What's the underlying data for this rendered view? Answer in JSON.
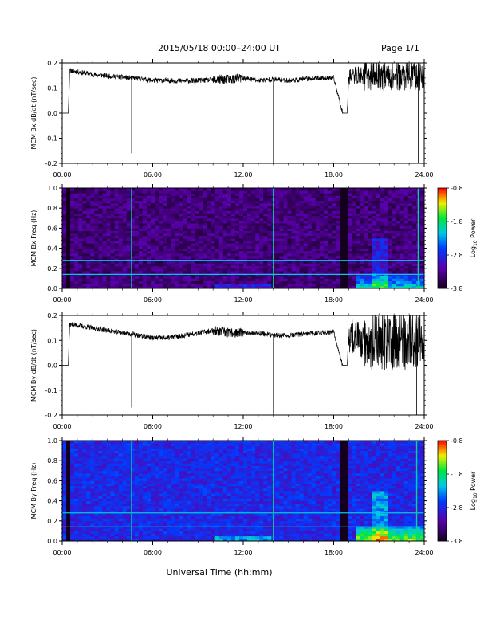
{
  "header": {
    "title": "2015/05/18  00:00–24:00 UT",
    "page": "Page 1/1"
  },
  "x_axis": {
    "ticks": [
      "00:00",
      "06:00",
      "12:00",
      "18:00",
      "24:00"
    ],
    "label": "Universal Time (hh:mm)"
  },
  "colorbar": {
    "ticks": [
      "-0.8",
      "-1.8",
      "-2.8",
      "-3.8"
    ],
    "label_main": "Log",
    "label_sub": "10",
    "label_tail": " Power",
    "range": [
      -3.8,
      -0.8
    ]
  },
  "chart_data": [
    {
      "type": "line",
      "ylabel": "MCM Bx dB/dt (nT/sec)",
      "xlim": [
        0,
        24
      ],
      "ylim": [
        -0.2,
        0.2
      ],
      "yticks": [
        "0.2",
        "0.1",
        "0.0",
        "-0.1",
        "-0.2"
      ],
      "xticks": [
        "00:00",
        "06:00",
        "12:00",
        "18:00",
        "24:00"
      ],
      "series": [
        {
          "x": [
            0.0,
            0.4,
            0.5,
            1.0,
            2.0,
            3.0,
            4.0,
            4.6,
            5.0,
            6.0,
            7.0,
            8.0,
            9.0,
            10.0,
            11.0,
            12.0,
            13.0,
            14.0,
            15.0,
            16.0,
            17.0,
            18.0,
            18.6,
            18.9,
            19.0,
            20.0,
            21.0,
            22.0,
            23.0,
            24.0
          ],
          "y": [
            0.0,
            0.0,
            0.17,
            0.165,
            0.155,
            0.148,
            0.143,
            0.14,
            0.138,
            0.13,
            0.13,
            0.128,
            0.13,
            0.132,
            0.135,
            0.14,
            0.13,
            0.135,
            0.13,
            0.135,
            0.14,
            0.14,
            0.0,
            0.0,
            0.15,
            0.15,
            0.15,
            0.15,
            0.15,
            0.15
          ]
        }
      ],
      "spikes": [
        {
          "x": 4.6,
          "y": -0.16
        },
        {
          "x": 14.0,
          "y": -0.2
        },
        {
          "x": 23.6,
          "y": -0.2
        }
      ]
    },
    {
      "type": "heatmap",
      "ylabel": "MCM Bx Freq (Hz)",
      "xlim": [
        0,
        24
      ],
      "ylim": [
        0.0,
        1.0
      ],
      "yticks": [
        "1.0",
        "0.8",
        "0.6",
        "0.4",
        "0.2",
        "0.0"
      ],
      "xticks": [
        "00:00",
        "06:00",
        "12:00",
        "18:00",
        "24:00"
      ],
      "background_level": -3.4,
      "harmonic_lines_hz": [
        0.14,
        0.28
      ],
      "vertical_streaks_h": [
        4.6,
        14.0,
        23.6
      ],
      "gaps_h": [
        [
          0.2,
          0.5
        ],
        [
          18.5,
          18.9
        ]
      ]
    },
    {
      "type": "line",
      "ylabel": "MCM By dB/dt (nT/sec)",
      "xlim": [
        0,
        24
      ],
      "ylim": [
        -0.2,
        0.2
      ],
      "yticks": [
        "0.2",
        "0.1",
        "0.0",
        "-0.1",
        "-0.2"
      ],
      "xticks": [
        "00:00",
        "06:00",
        "12:00",
        "18:00",
        "24:00"
      ],
      "series": [
        {
          "x": [
            0.0,
            0.4,
            0.5,
            1.0,
            2.0,
            3.0,
            4.0,
            4.6,
            5.0,
            6.0,
            7.0,
            8.0,
            9.0,
            10.0,
            11.0,
            12.0,
            13.0,
            14.0,
            15.0,
            16.0,
            17.0,
            18.0,
            18.6,
            18.9,
            19.0,
            20.0,
            21.0,
            22.0,
            23.0,
            24.0
          ],
          "y": [
            0.0,
            0.0,
            0.165,
            0.16,
            0.15,
            0.14,
            0.13,
            0.125,
            0.12,
            0.11,
            0.11,
            0.12,
            0.13,
            0.14,
            0.13,
            0.13,
            0.13,
            0.12,
            0.12,
            0.125,
            0.13,
            0.135,
            0.0,
            0.0,
            0.12,
            0.1,
            0.1,
            0.1,
            0.1,
            0.12
          ]
        }
      ],
      "spikes": [
        {
          "x": 4.6,
          "y": -0.17
        },
        {
          "x": 14.0,
          "y": -0.2
        },
        {
          "x": 23.5,
          "y": -0.2
        }
      ]
    },
    {
      "type": "heatmap",
      "ylabel": "MCM By Freq (Hz)",
      "xlim": [
        0,
        24
      ],
      "ylim": [
        0.0,
        1.0
      ],
      "yticks": [
        "1.0",
        "0.8",
        "0.6",
        "0.4",
        "0.2",
        "0.0"
      ],
      "xticks": [
        "00:00",
        "06:00",
        "12:00",
        "18:00",
        "24:00"
      ],
      "background_level": -2.8,
      "harmonic_lines_hz": [
        0.14,
        0.28
      ],
      "vertical_streaks_h": [
        4.6,
        14.0,
        23.5
      ],
      "gaps_h": [
        [
          0.2,
          0.5
        ],
        [
          18.5,
          18.9
        ]
      ]
    }
  ]
}
